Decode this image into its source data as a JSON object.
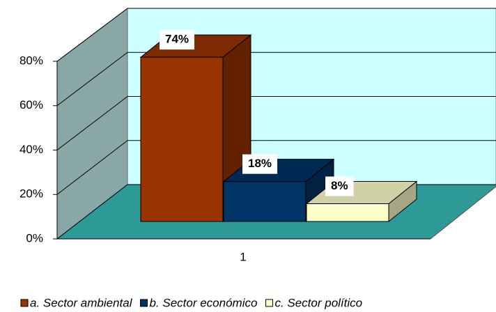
{
  "chart_data": {
    "type": "bar3d",
    "categories": [
      "1"
    ],
    "series": [
      {
        "name": "a. Sector ambiental",
        "color": "#993300",
        "values": [
          74
        ],
        "value_labels": [
          "74%"
        ]
      },
      {
        "name": "b. Sector económico",
        "color": "#003366",
        "values": [
          18
        ],
        "value_labels": [
          "18%"
        ]
      },
      {
        "name": "c. Sector político",
        "color": "#ffffcc",
        "values": [
          8
        ],
        "value_labels": [
          "8%"
        ]
      }
    ],
    "ylim": [
      0,
      80
    ],
    "yticks": [
      {
        "value": 0,
        "label": "0%"
      },
      {
        "value": 20,
        "label": "20%"
      },
      {
        "value": 40,
        "label": "40%"
      },
      {
        "value": 60,
        "label": "60%"
      },
      {
        "value": 80,
        "label": "80%"
      }
    ],
    "grid": true,
    "legend": "bottom"
  }
}
